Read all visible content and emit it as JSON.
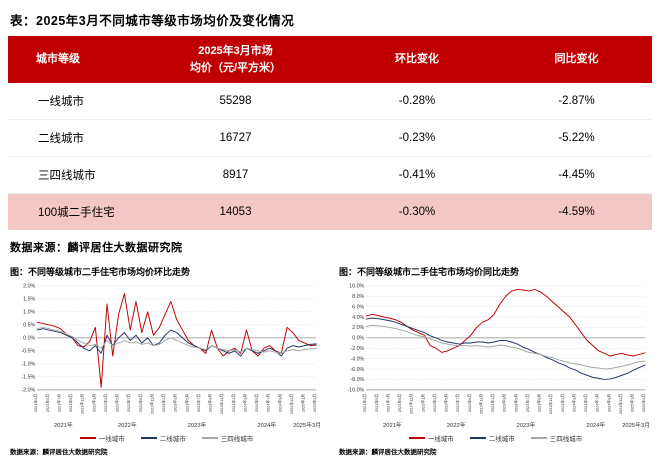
{
  "page": {
    "table_title": "表：2025年3月不同城市等级市场均价及变化情况",
    "table_source": "数据来源：麟评居住大数据研究院"
  },
  "table": {
    "col_city": "城市等级",
    "col_price_line1": "2025年3月市场",
    "col_price_line2": "均价（元/平方米）",
    "col_mom": "环比变化",
    "col_yoy": "同比变化",
    "header_bg": "#C00000",
    "highlight_bg": "#F2C7C5",
    "rows": [
      {
        "tier": "一线城市",
        "price": "55298",
        "mom": "-0.28%",
        "yoy": "-2.87%"
      },
      {
        "tier": "二线城市",
        "price": "16727",
        "mom": "-0.23%",
        "yoy": "-5.22%"
      },
      {
        "tier": "三四线城市",
        "price": "8917",
        "mom": "-0.41%",
        "yoy": "-4.45%"
      },
      {
        "tier": "100城二手住宅",
        "price": "14053",
        "mom": "-0.30%",
        "yoy": "-4.59%"
      }
    ]
  },
  "chart_data": [
    {
      "type": "line",
      "title": "图：不同等级城市二手住宅市场均价环比走势",
      "source": "数据来源：麟评居住大数据研究院",
      "ylim": [
        -2.0,
        2.0
      ],
      "ytick_step": 0.5,
      "grid": "dashed",
      "legend_position": "bottom",
      "x": [
        "2021年3月",
        "2021年4月",
        "2021年5月",
        "2021年6月",
        "2021年7月",
        "2021年8月",
        "2021年9月",
        "2021年10月",
        "2021年11月",
        "2021年12月",
        "2022年1月",
        "2022年2月",
        "2022年3月",
        "2022年4月",
        "2022年5月",
        "2022年6月",
        "2022年7月",
        "2022年8月",
        "2022年9月",
        "2022年10月",
        "2022年11月",
        "2022年12月",
        "2023年1月",
        "2023年2月",
        "2023年3月",
        "2023年4月",
        "2023年5月",
        "2023年6月",
        "2023年7月",
        "2023年8月",
        "2023年9月",
        "2023年10月",
        "2023年11月",
        "2023年12月",
        "2024年1月",
        "2024年2月",
        "2024年3月",
        "2024年4月",
        "2024年5月",
        "2024年6月",
        "2024年7月",
        "2024年8月",
        "2024年9月",
        "2024年10月",
        "2024年11月",
        "2024年12月",
        "2025年1月",
        "2025年2月",
        "2025年3月"
      ],
      "year_labels": [
        {
          "label": "2021年",
          "idx": 4.5
        },
        {
          "label": "2022年",
          "idx": 15.5
        },
        {
          "label": "2023年",
          "idx": 27.5
        },
        {
          "label": "2024年",
          "idx": 39.5
        },
        {
          "label": "2025年3月",
          "idx": 47,
          "anchor": "end"
        }
      ],
      "series": [
        {
          "name": "一线城市",
          "color": "#C00000",
          "values": [
            0.6,
            0.55,
            0.5,
            0.45,
            0.35,
            0.15,
            0.0,
            -0.3,
            -0.35,
            -0.15,
            0.4,
            -1.9,
            1.3,
            -0.7,
            0.9,
            1.7,
            0.3,
            1.4,
            0.2,
            1.0,
            0.1,
            0.4,
            0.9,
            1.4,
            0.7,
            0.3,
            -0.1,
            -0.3,
            -0.4,
            -0.6,
            0.3,
            -0.4,
            -0.7,
            -0.5,
            -0.4,
            -0.6,
            0.3,
            -0.5,
            -0.7,
            -0.4,
            -0.3,
            -0.5,
            -0.6,
            0.4,
            0.2,
            -0.1,
            -0.2,
            -0.3,
            -0.28
          ]
        },
        {
          "name": "二线城市",
          "color": "#1F3864",
          "values": [
            0.3,
            0.35,
            0.3,
            0.25,
            0.2,
            0.1,
            0.0,
            -0.2,
            -0.4,
            -0.5,
            -0.3,
            -0.6,
            0.1,
            -0.3,
            0.0,
            0.2,
            -0.1,
            0.1,
            -0.2,
            0.0,
            -0.3,
            -0.2,
            0.1,
            0.3,
            0.2,
            0.0,
            -0.2,
            -0.3,
            -0.4,
            -0.5,
            -0.3,
            -0.4,
            -0.5,
            -0.6,
            -0.5,
            -0.7,
            -0.4,
            -0.5,
            -0.6,
            -0.5,
            -0.4,
            -0.5,
            -0.7,
            -0.4,
            -0.3,
            -0.35,
            -0.3,
            -0.25,
            -0.23
          ]
        },
        {
          "name": "三四线城市",
          "color": "#A6A6A6",
          "values": [
            0.35,
            0.4,
            0.35,
            0.3,
            0.25,
            0.15,
            0.05,
            -0.1,
            -0.2,
            -0.3,
            -0.25,
            -0.4,
            -0.1,
            -0.3,
            -0.2,
            -0.1,
            -0.2,
            -0.15,
            -0.25,
            -0.2,
            -0.3,
            -0.25,
            -0.1,
            0.0,
            -0.1,
            -0.2,
            -0.3,
            -0.35,
            -0.4,
            -0.45,
            -0.3,
            -0.4,
            -0.45,
            -0.5,
            -0.45,
            -0.55,
            -0.4,
            -0.45,
            -0.5,
            -0.55,
            -0.5,
            -0.55,
            -0.6,
            -0.5,
            -0.45,
            -0.5,
            -0.45,
            -0.42,
            -0.41
          ]
        }
      ]
    },
    {
      "type": "line",
      "title": "图：不同等级城市二手住宅市场均价同比走势",
      "source": "数据来源：麟评居住大数据研究院",
      "ylim": [
        -10.0,
        10.0
      ],
      "ytick_step": 2.0,
      "grid": "dashed",
      "legend_position": "bottom",
      "x": [
        "2021年3月",
        "2021年4月",
        "2021年5月",
        "2021年6月",
        "2021年7月",
        "2021年8月",
        "2021年9月",
        "2021年10月",
        "2021年11月",
        "2021年12月",
        "2022年1月",
        "2022年2月",
        "2022年3月",
        "2022年4月",
        "2022年5月",
        "2022年6月",
        "2022年7月",
        "2022年8月",
        "2022年9月",
        "2022年10月",
        "2022年11月",
        "2022年12月",
        "2023年1月",
        "2023年2月",
        "2023年3月",
        "2023年4月",
        "2023年5月",
        "2023年6月",
        "2023年7月",
        "2023年8月",
        "2023年9月",
        "2023年10月",
        "2023年11月",
        "2023年12月",
        "2024年1月",
        "2024年2月",
        "2024年3月",
        "2024年4月",
        "2024年5月",
        "2024年6月",
        "2024年7月",
        "2024年8月",
        "2024年9月",
        "2024年10月",
        "2024年11月",
        "2024年12月",
        "2025年1月",
        "2025年2月",
        "2025年3月"
      ],
      "year_labels": [
        {
          "label": "2021年",
          "idx": 4.5
        },
        {
          "label": "2022年",
          "idx": 15.5
        },
        {
          "label": "2023年",
          "idx": 27.5
        },
        {
          "label": "2024年",
          "idx": 39.5
        },
        {
          "label": "2025年3月",
          "idx": 47,
          "anchor": "end"
        }
      ],
      "series": [
        {
          "name": "一线城市",
          "color": "#C00000",
          "values": [
            4.2,
            4.5,
            4.3,
            4.0,
            3.8,
            3.5,
            3.0,
            2.2,
            1.5,
            1.0,
            0.5,
            -1.5,
            -2.0,
            -2.8,
            -2.5,
            -2.0,
            -1.5,
            -0.5,
            0.5,
            2.0,
            3.0,
            3.5,
            4.5,
            6.5,
            8.0,
            9.0,
            9.3,
            9.2,
            9.0,
            9.3,
            8.8,
            8.0,
            7.0,
            6.0,
            5.0,
            4.0,
            2.5,
            1.0,
            -0.5,
            -1.5,
            -2.5,
            -3.0,
            -3.5,
            -3.2,
            -3.0,
            -3.3,
            -3.5,
            -3.2,
            -2.87
          ]
        },
        {
          "name": "二线城市",
          "color": "#1F3864",
          "values": [
            3.6,
            3.8,
            3.7,
            3.5,
            3.3,
            3.0,
            2.6,
            2.2,
            1.8,
            1.4,
            1.0,
            0.4,
            0.0,
            -0.5,
            -0.8,
            -1.0,
            -1.2,
            -1.0,
            -1.0,
            -0.8,
            -0.8,
            -1.0,
            -0.8,
            -0.5,
            -0.5,
            -0.8,
            -1.2,
            -1.8,
            -2.2,
            -2.8,
            -3.2,
            -3.8,
            -4.2,
            -4.8,
            -5.2,
            -5.8,
            -6.2,
            -6.8,
            -7.2,
            -7.6,
            -7.8,
            -8.0,
            -7.9,
            -7.6,
            -7.2,
            -6.8,
            -6.2,
            -5.7,
            -5.22
          ]
        },
        {
          "name": "三四线城市",
          "color": "#A6A6A6",
          "values": [
            2.2,
            2.4,
            2.3,
            2.2,
            2.0,
            1.8,
            1.5,
            1.2,
            0.8,
            0.4,
            0.2,
            -0.2,
            -0.6,
            -1.0,
            -1.2,
            -1.4,
            -1.5,
            -1.5,
            -1.6,
            -1.5,
            -1.6,
            -1.8,
            -1.6,
            -1.4,
            -1.5,
            -1.8,
            -2.0,
            -2.4,
            -2.8,
            -3.0,
            -3.2,
            -3.6,
            -3.8,
            -4.2,
            -4.5,
            -4.8,
            -5.0,
            -5.2,
            -5.5,
            -5.7,
            -5.8,
            -6.0,
            -5.9,
            -5.7,
            -5.5,
            -5.2,
            -4.9,
            -4.6,
            -4.45
          ]
        }
      ]
    }
  ]
}
